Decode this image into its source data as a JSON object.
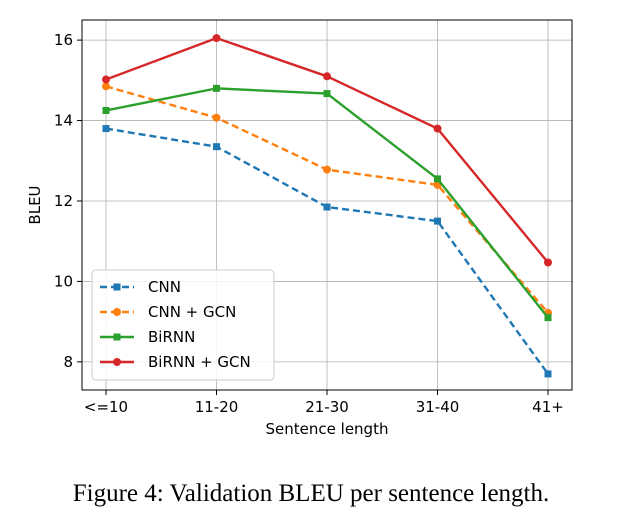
{
  "chart_data": {
    "type": "line",
    "categories": [
      "<=10",
      "11-20",
      "21-30",
      "31-40",
      "41+"
    ],
    "xlabel": "Sentence length",
    "ylabel": "BLEU",
    "ylim": [
      7.3,
      16.5
    ],
    "yticks": [
      8,
      10,
      12,
      14,
      16
    ],
    "grid": true,
    "legend_position": "lower-left",
    "series": [
      {
        "name": "CNN",
        "values": [
          13.8,
          13.35,
          11.85,
          11.5,
          7.7
        ],
        "color": "#1f77b4",
        "dashed": true,
        "marker": "square"
      },
      {
        "name": "CNN + GCN",
        "values": [
          14.85,
          14.07,
          12.78,
          12.4,
          9.22
        ],
        "color": "#ff7f0e",
        "dashed": true,
        "marker": "circle"
      },
      {
        "name": "BiRNN",
        "values": [
          14.25,
          14.8,
          14.67,
          12.55,
          9.1
        ],
        "color": "#2ca02c",
        "dashed": false,
        "marker": "square"
      },
      {
        "name": "BiRNN + GCN",
        "values": [
          15.02,
          16.05,
          15.1,
          13.8,
          10.47
        ],
        "color": "#d62728",
        "dashed": false,
        "marker": "circle"
      }
    ]
  },
  "caption": "Figure 4: Validation BLEU per sentence length."
}
